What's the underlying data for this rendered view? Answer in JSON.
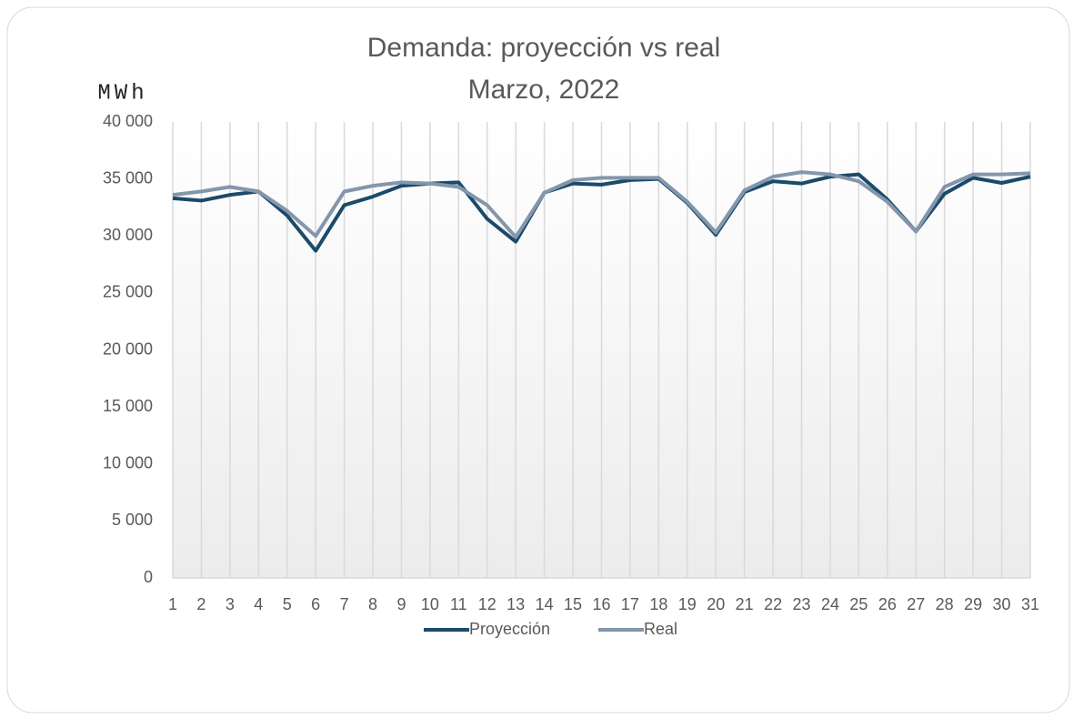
{
  "chart_data": {
    "type": "line",
    "title": "Demanda: proyección vs real",
    "subtitle": "Marzo, 2022",
    "y_label": "MWh",
    "categories": [
      "1",
      "2",
      "3",
      "4",
      "5",
      "6",
      "7",
      "8",
      "9",
      "10",
      "11",
      "12",
      "13",
      "14",
      "15",
      "16",
      "17",
      "18",
      "19",
      "20",
      "21",
      "22",
      "23",
      "24",
      "25",
      "26",
      "27",
      "28",
      "29",
      "30",
      "31"
    ],
    "series": [
      {
        "name": "Proyección",
        "color": "#1b4a6b",
        "values": [
          33300,
          33100,
          33600,
          33900,
          31800,
          28700,
          32700,
          33450,
          34400,
          34600,
          34700,
          31500,
          29500,
          33800,
          34600,
          34500,
          34900,
          35000,
          32900,
          30100,
          33850,
          34800,
          34600,
          35200,
          35400,
          33200,
          30400,
          33700,
          35100,
          34650,
          35200
        ]
      },
      {
        "name": "Real",
        "color": "#8496ab",
        "values": [
          33600,
          33900,
          34300,
          33900,
          32200,
          30000,
          33900,
          34400,
          34700,
          34600,
          34300,
          32700,
          29900,
          33800,
          34900,
          35100,
          35100,
          35100,
          33000,
          30300,
          34000,
          35200,
          35600,
          35400,
          34800,
          33000,
          30400,
          34300,
          35400,
          35400,
          35500
        ]
      }
    ],
    "ylim": [
      0,
      40000
    ],
    "yticks": [
      {
        "value": 0,
        "label": "0"
      },
      {
        "value": 5000,
        "label": "5 000"
      },
      {
        "value": 10000,
        "label": "10 000"
      },
      {
        "value": 15000,
        "label": "15 000"
      },
      {
        "value": 20000,
        "label": "20 000"
      },
      {
        "value": 25000,
        "label": "25 000"
      },
      {
        "value": 30000,
        "label": "30 000"
      },
      {
        "value": 35000,
        "label": "35 000"
      },
      {
        "value": 40000,
        "label": "40 000"
      }
    ],
    "grid": "vertical",
    "legend": "bottom"
  }
}
